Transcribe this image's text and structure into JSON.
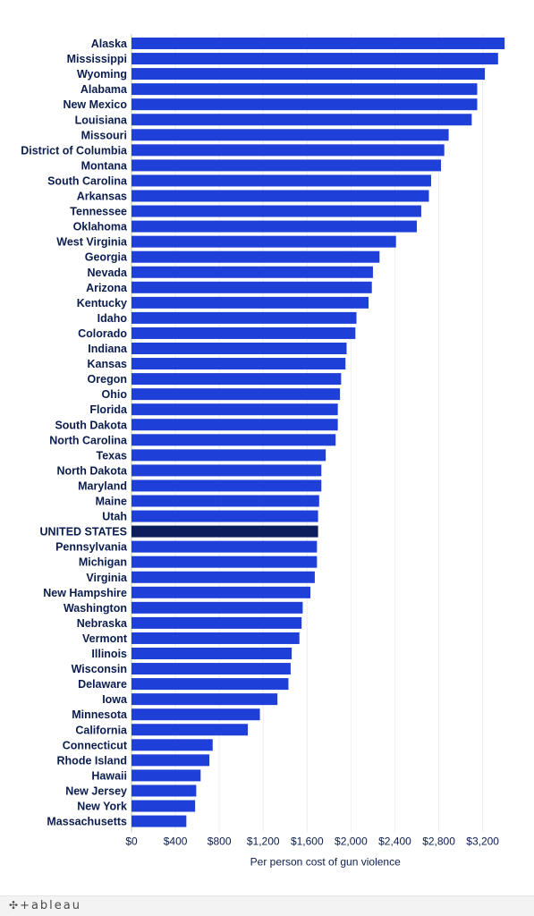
{
  "chart_data": {
    "type": "bar",
    "orientation": "horizontal",
    "xlabel": "Per person cost of gun violence",
    "ylabel": "",
    "xlim": [
      0,
      3500
    ],
    "x_ticks": [
      0,
      400,
      800,
      1200,
      1600,
      2000,
      2400,
      2800,
      3200
    ],
    "x_tick_labels": [
      "$0",
      "$400",
      "$800",
      "$1,200",
      "$1,600",
      "$2,000",
      "$2,400",
      "$2,800",
      "$3,200"
    ],
    "grid": "vertical",
    "bar_color": "#1f3fd9",
    "highlight_color": "#0c1e5c",
    "highlight_category": "UNITED STATES",
    "categories": [
      "Alaska",
      "Mississippi",
      "Wyoming",
      "Alabama",
      "New Mexico",
      "Louisiana",
      "Missouri",
      "District of Columbia",
      "Montana",
      "South Carolina",
      "Arkansas",
      "Tennessee",
      "Oklahoma",
      "West Virginia",
      "Georgia",
      "Nevada",
      "Arizona",
      "Kentucky",
      "Idaho",
      "Colorado",
      "Indiana",
      "Kansas",
      "Oregon",
      "Ohio",
      "Florida",
      "South Dakota",
      "North Carolina",
      "Texas",
      "North Dakota",
      "Maryland",
      "Maine",
      "Utah",
      "UNITED STATES",
      "Pennsylvania",
      "Michigan",
      "Virginia",
      "New Hampshire",
      "Washington",
      "Nebraska",
      "Vermont",
      "Illinois",
      "Wisconsin",
      "Delaware",
      "Iowa",
      "Minnesota",
      "California",
      "Connecticut",
      "Rhode Island",
      "Hawaii",
      "New Jersey",
      "New York",
      "Massachusetts"
    ],
    "values": [
      3400,
      3340,
      3220,
      3150,
      3150,
      3100,
      2890,
      2850,
      2820,
      2730,
      2710,
      2640,
      2600,
      2410,
      2260,
      2200,
      2190,
      2160,
      2050,
      2040,
      1960,
      1950,
      1910,
      1900,
      1880,
      1880,
      1860,
      1770,
      1730,
      1730,
      1710,
      1700,
      1700,
      1690,
      1690,
      1670,
      1630,
      1560,
      1550,
      1530,
      1460,
      1450,
      1430,
      1330,
      1170,
      1060,
      740,
      710,
      630,
      590,
      580,
      500
    ]
  },
  "footer": {
    "logo_text": "+ableau",
    "logo_icon": "tableau-logo-icon"
  }
}
